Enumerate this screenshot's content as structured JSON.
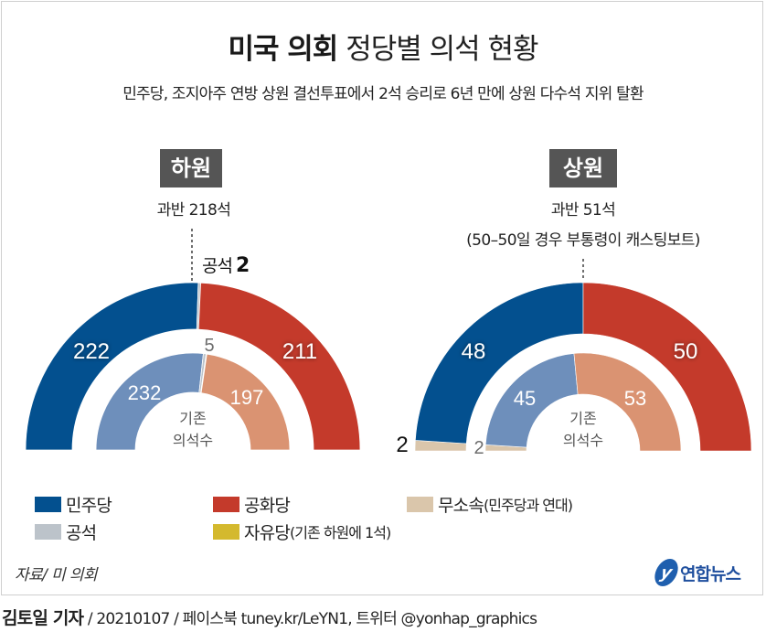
{
  "header": {
    "title_bold": "미국 의회",
    "title_rest": "정당별 의석 현황",
    "subtitle": "민주당, 조지아주 연방 상원 결선투표에서 2석 승리로 6년 만에 상원 다수석 지위 탈환"
  },
  "colors": {
    "democrat": "#03508f",
    "republican": "#c43a2b",
    "independent": "#dac6ab",
    "vacant": "#bcc3ca",
    "libertarian": "#d4b92e",
    "democrat_prev": "#6e8fbb",
    "republican_prev": "#da9372"
  },
  "chart_data": [
    {
      "type": "pie",
      "variant": "nested-half-donut",
      "title": "하원",
      "majority_label": "과반 218석",
      "majority": 218,
      "outer_label": "current",
      "inner_label": "기존 의석수",
      "series": [
        {
          "name": "current",
          "slices": [
            {
              "party": "민주당",
              "key": "democrat",
              "value": 222,
              "label": "222"
            },
            {
              "party": "공석",
              "key": "vacant",
              "value": 2,
              "label": "공석 2"
            },
            {
              "party": "공화당",
              "key": "republican",
              "value": 211,
              "label": "211"
            }
          ]
        },
        {
          "name": "기존 의석수",
          "slices": [
            {
              "party": "민주당",
              "key": "democrat_prev",
              "value": 232,
              "label": "232"
            },
            {
              "party": "공석",
              "key": "vacant",
              "value": 4,
              "label": ""
            },
            {
              "party": "자유당",
              "key": "libertarian",
              "value": 1,
              "label": ""
            },
            {
              "party": "공화당",
              "key": "republican_prev",
              "value": 197,
              "label": "197"
            }
          ],
          "other_label": "5"
        }
      ]
    },
    {
      "type": "pie",
      "variant": "nested-half-donut",
      "title": "상원",
      "majority_label": "과반 51석",
      "majority_note": "(50–50일 경우 부통령이 캐스팅보트)",
      "majority": 51,
      "inner_label": "기존 의석수",
      "series": [
        {
          "name": "current",
          "slices": [
            {
              "party": "무소속",
              "key": "independent",
              "value": 2,
              "label": "2"
            },
            {
              "party": "민주당",
              "key": "democrat",
              "value": 48,
              "label": "48"
            },
            {
              "party": "공화당",
              "key": "republican",
              "value": 50,
              "label": "50"
            }
          ]
        },
        {
          "name": "기존 의석수",
          "slices": [
            {
              "party": "무소속",
              "key": "independent",
              "value": 2,
              "label": "2"
            },
            {
              "party": "민주당",
              "key": "democrat_prev",
              "value": 45,
              "label": "45"
            },
            {
              "party": "공화당",
              "key": "republican_prev",
              "value": 53,
              "label": "53"
            }
          ]
        }
      ]
    }
  ],
  "house": {
    "tag": "하원",
    "majority": "과반 218석",
    "vacant_label": "공석",
    "vacant_count": "2",
    "inner_center_line1": "기존",
    "inner_center_line2": "의석수"
  },
  "senate": {
    "tag": "상원",
    "majority": "과반 51석",
    "majority_note": "(50–50일 경우 부통령이 캐스팅보트)",
    "inner_center_line1": "기존",
    "inner_center_line2": "의석수"
  },
  "legend": [
    {
      "label": "민주당",
      "sub": "",
      "key": "democrat"
    },
    {
      "label": "공화당",
      "sub": "",
      "key": "republican"
    },
    {
      "label": "무소속",
      "sub": "(민주당과 연대)",
      "key": "independent"
    },
    {
      "label": "공석",
      "sub": "",
      "key": "vacant"
    },
    {
      "label": "자유당",
      "sub": "(기존 하원에 1석)",
      "key": "libertarian"
    }
  ],
  "footer": {
    "source": "자료/ 미 의회",
    "logo_text": "연합뉴스",
    "logo_mark": "y",
    "byline_name": "김토일 기자",
    "byline_rest": " / 20210107 / 페이스북 tuney.kr/LeYN1, 트위터 @yonhap_graphics"
  }
}
